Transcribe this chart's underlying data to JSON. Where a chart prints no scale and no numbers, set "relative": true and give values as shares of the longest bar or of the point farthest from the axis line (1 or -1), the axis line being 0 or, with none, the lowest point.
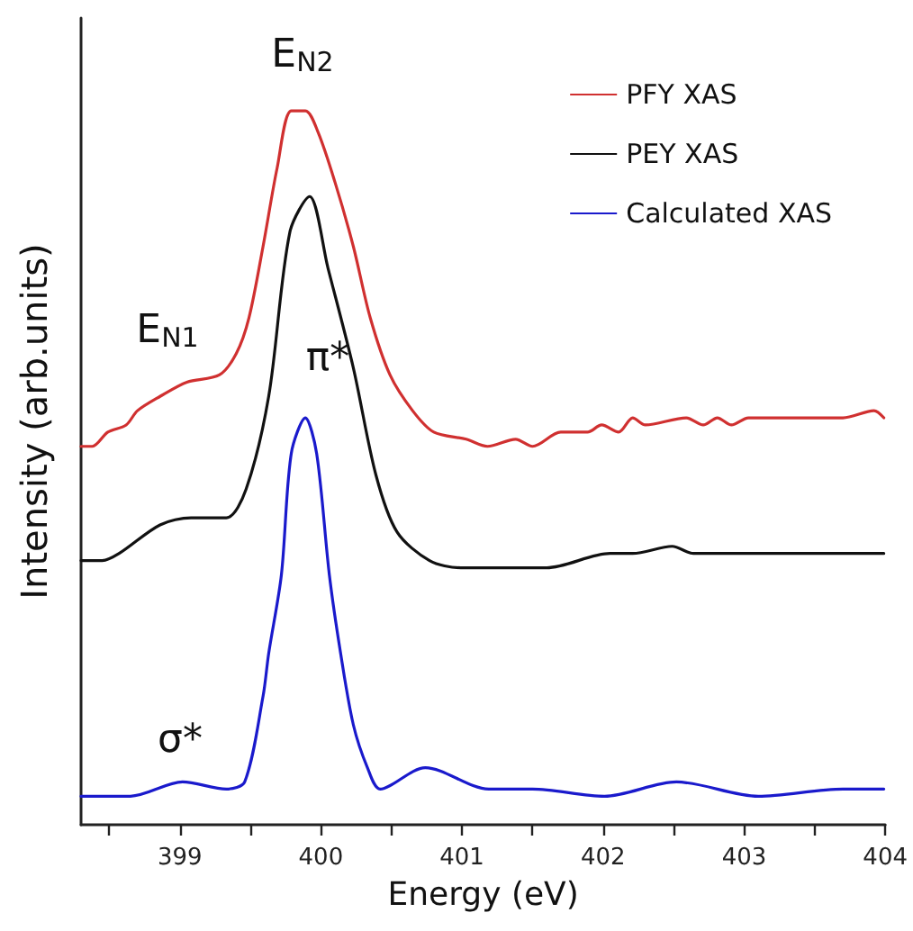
{
  "chart_data": {
    "type": "line",
    "relative": true,
    "xlabel": "Energy (eV)",
    "ylabel": "Intensity (arb.units)",
    "xlim": [
      398.3,
      404
    ],
    "xticks": [
      {
        "value": 398.5,
        "label": null
      },
      399,
      {
        "value": 399.5,
        "label": null
      },
      400,
      {
        "value": 400.5,
        "label": null
      },
      401,
      {
        "value": 401.5,
        "label": null
      },
      402,
      {
        "value": 402.5,
        "label": null
      },
      403,
      {
        "value": 403.5,
        "label": null
      },
      404
    ],
    "grid": false,
    "legend": "top right",
    "marker": "none",
    "line_style": "solid",
    "tick_labels": "x",
    "series": [
      {
        "name": "PFY XAS",
        "color": "#d03030",
        "x": [
          398.3,
          398.38,
          398.49,
          398.62,
          398.7,
          398.86,
          399.05,
          399.28,
          399.4,
          399.49,
          399.59,
          399.69,
          399.79,
          399.89,
          399.98,
          400.1,
          400.23,
          400.35,
          400.49,
          400.65,
          400.8,
          401.03,
          401.18,
          401.38,
          401.5,
          401.7,
          401.89,
          401.99,
          402.11,
          402.21,
          402.3,
          402.59,
          402.71,
          402.81,
          402.91,
          403.03,
          403.23,
          403.41,
          403.55,
          403.7,
          403.92,
          403.99
        ],
        "values": [
          0.53,
          0.53,
          0.55,
          0.56,
          0.58,
          0.6,
          0.62,
          0.63,
          0.66,
          0.71,
          0.81,
          0.92,
          1.0,
          1.0,
          0.97,
          0.9,
          0.81,
          0.71,
          0.63,
          0.58,
          0.55,
          0.54,
          0.53,
          0.54,
          0.53,
          0.55,
          0.55,
          0.56,
          0.55,
          0.57,
          0.56,
          0.57,
          0.56,
          0.57,
          0.56,
          0.57,
          0.57,
          0.57,
          0.57,
          0.57,
          0.58,
          0.57
        ]
      },
      {
        "name": "PEY XAS",
        "color": "#111111",
        "x": [
          398.3,
          398.45,
          398.57,
          398.86,
          399.08,
          399.33,
          399.47,
          399.63,
          399.78,
          399.92,
          400.05,
          400.23,
          400.39,
          400.54,
          400.77,
          400.99,
          401.16,
          401.28,
          401.6,
          402.05,
          402.21,
          402.49,
          402.64,
          402.81,
          403.15,
          403.41,
          403.66,
          403.99
        ],
        "values": [
          0.37,
          0.37,
          0.38,
          0.42,
          0.43,
          0.43,
          0.47,
          0.6,
          0.83,
          0.88,
          0.78,
          0.64,
          0.49,
          0.41,
          0.37,
          0.36,
          0.36,
          0.36,
          0.36,
          0.38,
          0.38,
          0.39,
          0.38,
          0.38,
          0.38,
          0.38,
          0.38,
          0.38
        ]
      },
      {
        "name": "Calculated XAS",
        "color": "#1a1acc",
        "x": [
          398.3,
          398.65,
          399.02,
          399.33,
          399.46,
          399.59,
          399.63,
          399.72,
          399.79,
          399.89,
          399.97,
          400.06,
          400.14,
          400.23,
          400.33,
          400.42,
          400.74,
          401.19,
          401.5,
          402.01,
          402.52,
          403.1,
          403.7,
          403.99
        ],
        "values": [
          0.04,
          0.04,
          0.06,
          0.05,
          0.06,
          0.18,
          0.24,
          0.35,
          0.52,
          0.57,
          0.52,
          0.35,
          0.24,
          0.14,
          0.08,
          0.05,
          0.08,
          0.05,
          0.05,
          0.04,
          0.06,
          0.04,
          0.05,
          0.05
        ]
      }
    ],
    "annotations": [
      "E$_{N2}$",
      "E$_{N1}$",
      "π*",
      "σ*"
    ]
  }
}
